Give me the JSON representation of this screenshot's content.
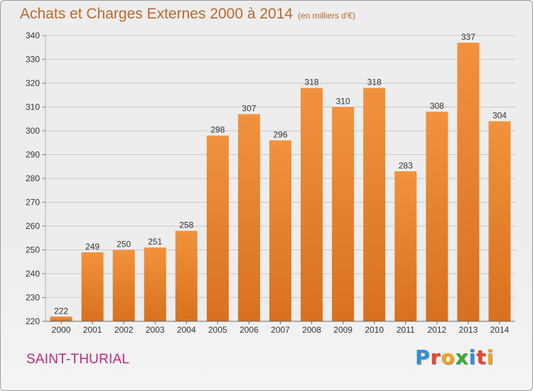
{
  "chart_data": {
    "type": "bar",
    "title": "Achats et Charges Externes 2000 à 2014",
    "subtitle": "(en milliers d'€)",
    "categories": [
      "2000",
      "2001",
      "2002",
      "2003",
      "2004",
      "2005",
      "2006",
      "2007",
      "2008",
      "2009",
      "2010",
      "2011",
      "2012",
      "2013",
      "2014"
    ],
    "values": [
      222,
      249,
      250,
      251,
      258,
      298,
      307,
      296,
      318,
      310,
      318,
      283,
      308,
      337,
      304
    ],
    "ylim": [
      220,
      340
    ],
    "yticks": [
      220,
      230,
      240,
      250,
      260,
      270,
      280,
      290,
      300,
      310,
      320,
      330,
      340
    ],
    "grid": true,
    "bar_color": "#f2923d",
    "bar_color_dark": "#d8711f"
  },
  "footer": {
    "commune": "SAINT-THURIAL"
  },
  "logo": {
    "letters": [
      {
        "char": "P",
        "color": "#2f8fd8"
      },
      {
        "char": "r",
        "color": "#e8452f"
      },
      {
        "char": "o",
        "color": "#f2a21b"
      },
      {
        "char": "x",
        "color": "#3aa935"
      },
      {
        "char": "i",
        "color": "#2f8fd8"
      },
      {
        "char": "t",
        "color": "#e8452f"
      },
      {
        "char": "i",
        "color": "#f2a21b"
      }
    ]
  }
}
